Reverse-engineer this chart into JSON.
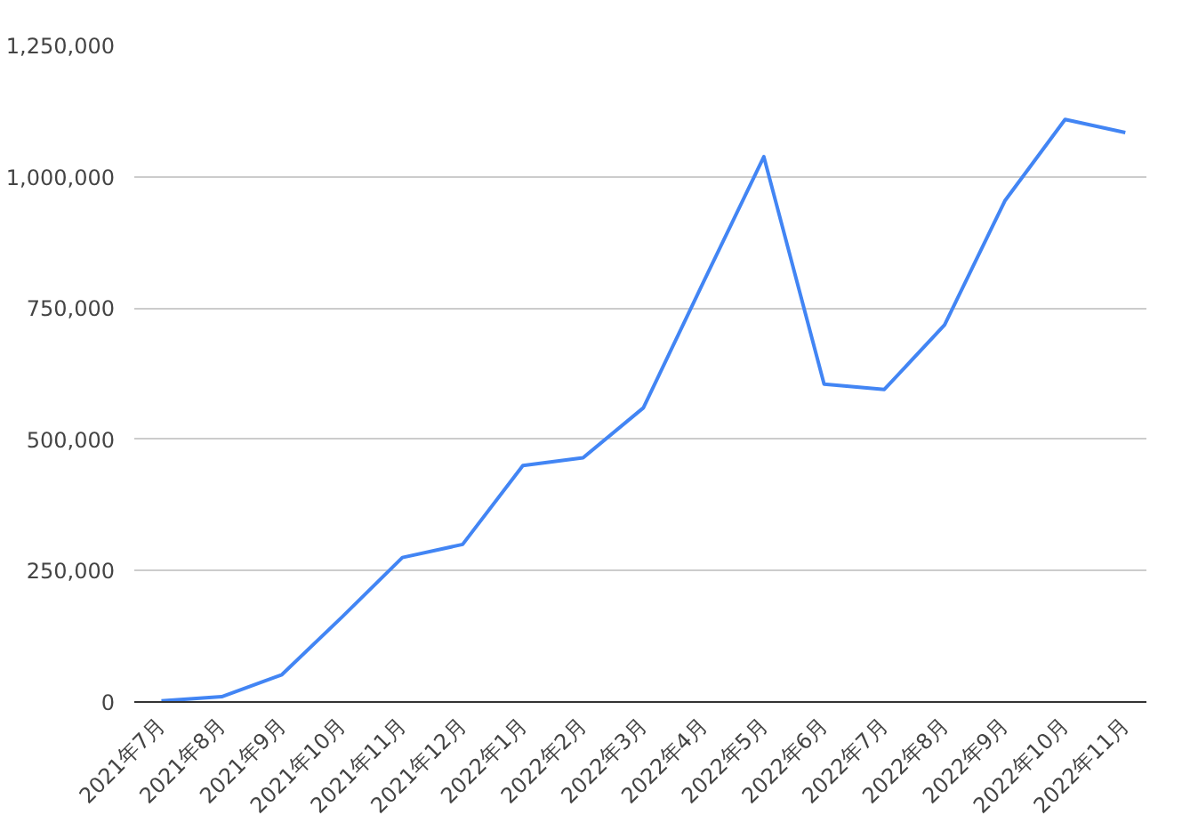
{
  "chart_data": {
    "type": "line",
    "categories": [
      "2021年7月",
      "2021年8月",
      "2021年9月",
      "2021年10月",
      "2021年11月",
      "2021年12月",
      "2022年1月",
      "2022年2月",
      "2022年3月",
      "2022年4月",
      "2022年5月",
      "2022年6月",
      "2022年7月",
      "2022年8月",
      "2022年9月",
      "2022年10月",
      "2022年11月"
    ],
    "series": [
      {
        "color": "#4285f4",
        "values": [
          2000,
          10000,
          52000,
          162000,
          275000,
          300000,
          450000,
          465000,
          560000,
          800000,
          1038000,
          605000,
          595000,
          718000,
          954000,
          1109000,
          1084000
        ]
      }
    ],
    "ylim": [
      0,
      1250000
    ],
    "yticks": [
      {
        "value": 0,
        "label": "0"
      },
      {
        "value": 250000,
        "label": "250,000"
      },
      {
        "value": 500000,
        "label": "500,000"
      },
      {
        "value": 750000,
        "label": "750,000"
      },
      {
        "value": 1000000,
        "label": "1,000,000"
      },
      {
        "value": 1250000,
        "label": "1,250,000"
      }
    ],
    "grid": "y",
    "marker": "none",
    "line_style": "solid"
  }
}
